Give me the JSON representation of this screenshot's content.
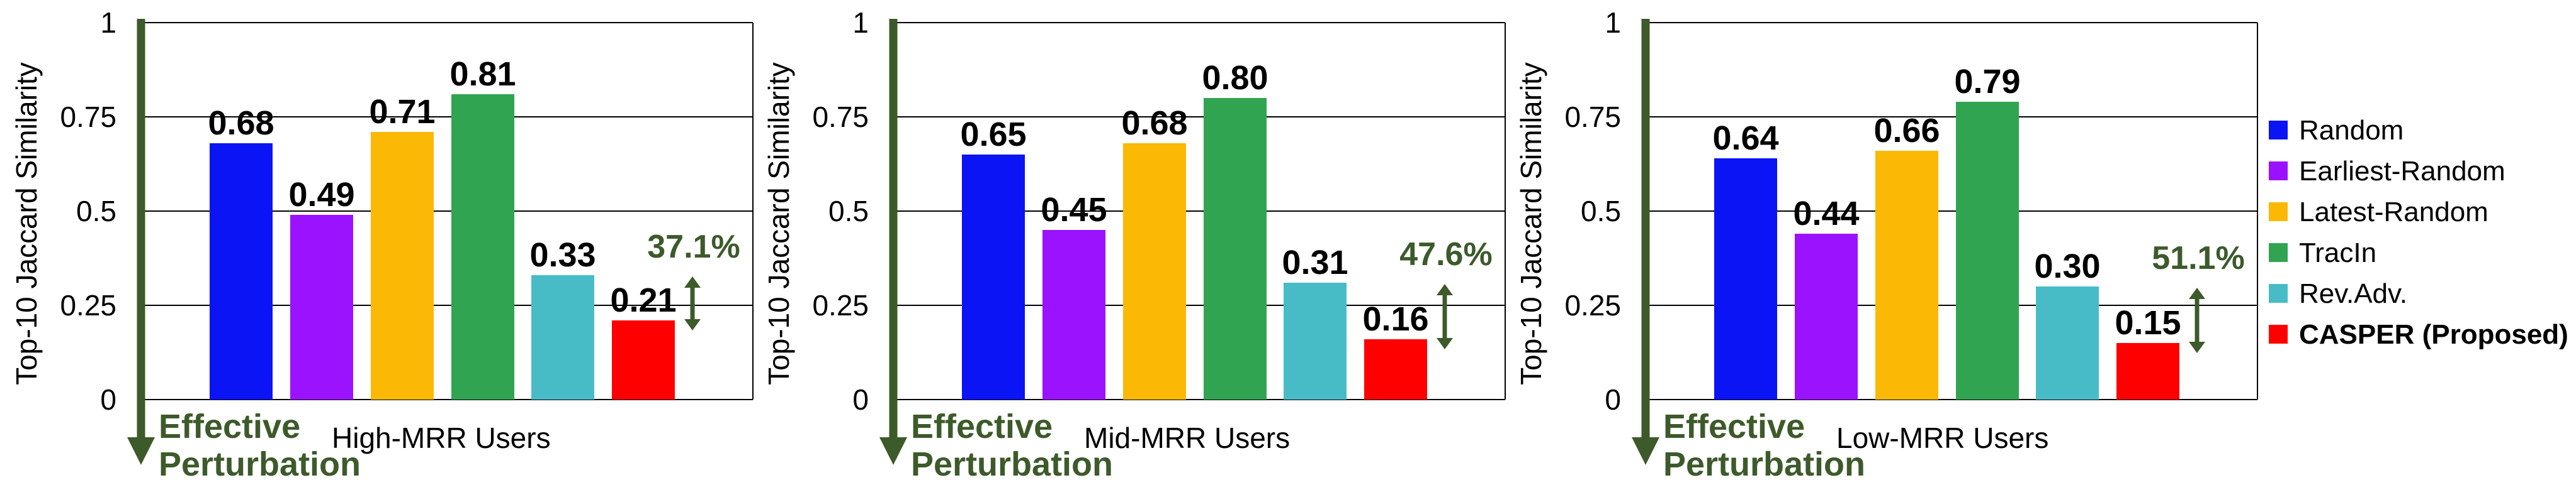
{
  "colors": {
    "Random": "#0a14f5",
    "Earliest-Random": "#9a12ff",
    "Latest-Random": "#fbb805",
    "TracIn": "#31a452",
    "Rev.Adv.": "#47bcc7",
    "CASPER (Proposed)": "#ff0000",
    "arrow": "#3d5a2a"
  },
  "chart_data": [
    {
      "type": "bar",
      "ylabel": "Top-10 Jaccard Similarity",
      "xlabel": "High-MRR Users",
      "ylim": [
        0,
        1
      ],
      "yticks": [
        "0",
        "0.25",
        "0.5",
        "0.75",
        "1"
      ],
      "grid": true,
      "categories": [
        "Random",
        "Earliest-Random",
        "Latest-Random",
        "TracIn",
        "Rev.Adv.",
        "CASPER (Proposed)"
      ],
      "values": [
        0.68,
        0.49,
        0.71,
        0.81,
        0.33,
        0.21
      ],
      "value_labels": [
        "0.68",
        "0.49",
        "0.71",
        "0.81",
        "0.33",
        "0.21"
      ],
      "annotation": "37.1%",
      "arrow_label": "Effective Perturbation",
      "arrow_label_lines": [
        "Effective",
        "Perturbation"
      ]
    },
    {
      "type": "bar",
      "ylabel": "Top-10 Jaccard Similarity",
      "xlabel": "Mid-MRR Users",
      "ylim": [
        0,
        1
      ],
      "yticks": [
        "0",
        "0.25",
        "0.5",
        "0.75",
        "1"
      ],
      "grid": true,
      "categories": [
        "Random",
        "Earliest-Random",
        "Latest-Random",
        "TracIn",
        "Rev.Adv.",
        "CASPER (Proposed)"
      ],
      "values": [
        0.65,
        0.45,
        0.68,
        0.8,
        0.31,
        0.16
      ],
      "value_labels": [
        "0.65",
        "0.45",
        "0.68",
        "0.80",
        "0.31",
        "0.16"
      ],
      "annotation": "47.6%",
      "arrow_label": "Effective Perturbation",
      "arrow_label_lines": [
        "Effective",
        "Perturbation"
      ]
    },
    {
      "type": "bar",
      "ylabel": "Top-10 Jaccard Similarity",
      "xlabel": "Low-MRR Users",
      "ylim": [
        0,
        1
      ],
      "yticks": [
        "0",
        "0.25",
        "0.5",
        "0.75",
        "1"
      ],
      "grid": true,
      "categories": [
        "Random",
        "Earliest-Random",
        "Latest-Random",
        "TracIn",
        "Rev.Adv.",
        "CASPER (Proposed)"
      ],
      "values": [
        0.64,
        0.44,
        0.66,
        0.79,
        0.3,
        0.15
      ],
      "value_labels": [
        "0.64",
        "0.44",
        "0.66",
        "0.79",
        "0.30",
        "0.15"
      ],
      "annotation": "51.1%",
      "arrow_label": "Effective Perturbation",
      "arrow_label_lines": [
        "Effective",
        "Perturbation"
      ]
    }
  ],
  "legend": {
    "placement": "right",
    "items": [
      {
        "label": "Random",
        "bold": false
      },
      {
        "label": "Earliest-Random",
        "bold": false
      },
      {
        "label": "Latest-Random",
        "bold": false
      },
      {
        "label": "TracIn",
        "bold": false
      },
      {
        "label": "Rev.Adv.",
        "bold": false
      },
      {
        "label": "CASPER (Proposed)",
        "bold": true
      }
    ]
  }
}
